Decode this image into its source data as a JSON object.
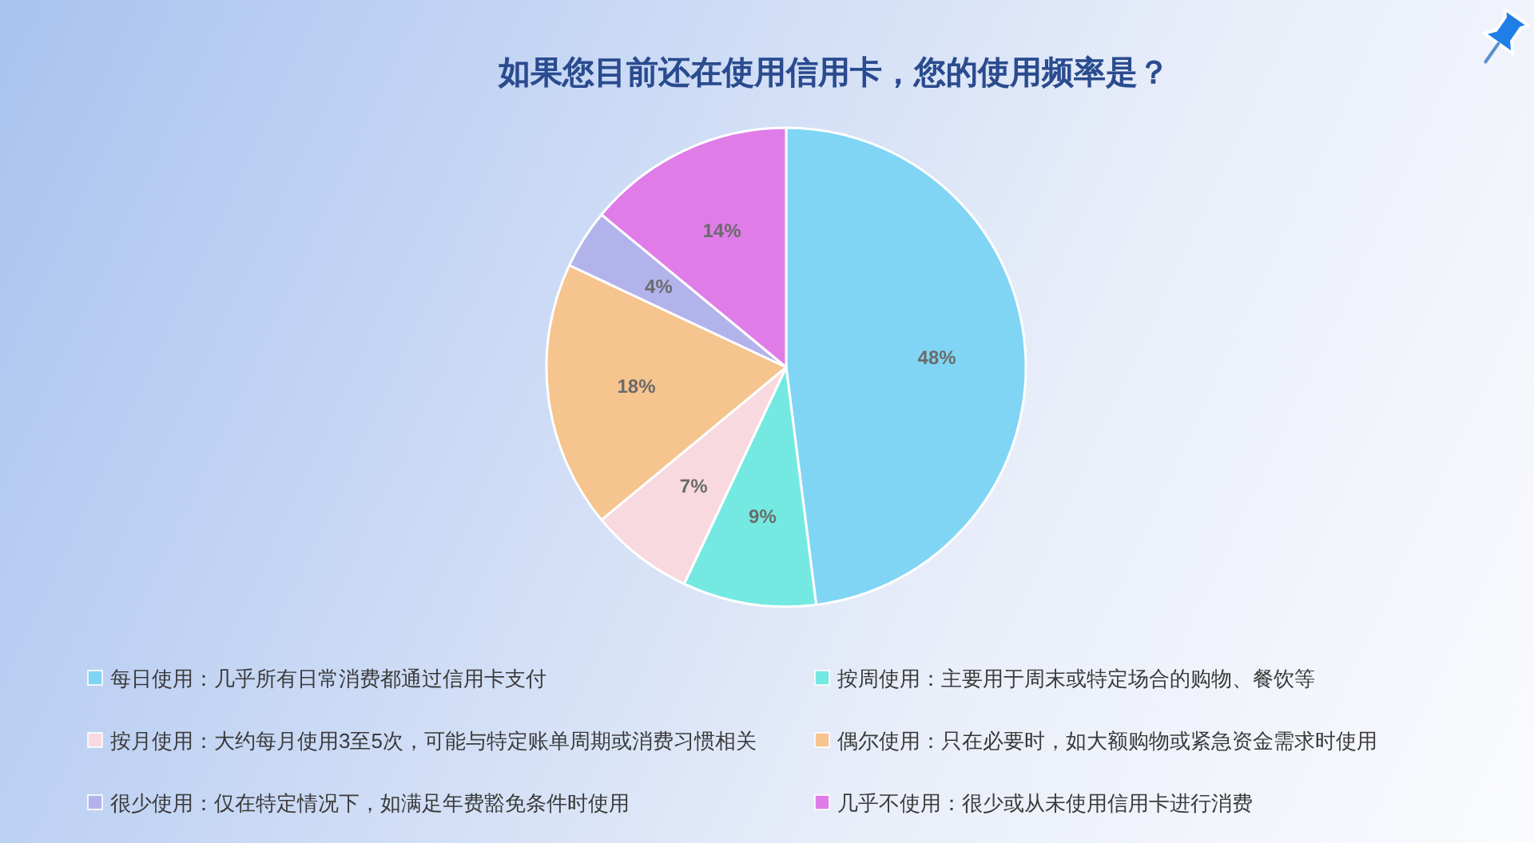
{
  "chart_data": {
    "type": "pie",
    "title": "如果您目前还在使用信用卡，您的使用频率是？",
    "categories": [
      "每日使用：几乎所有日常消费都通过信用卡支付",
      "按周使用：主要用于周末或特定场合的购物、餐饮等",
      "按月使用：大约每月使用3至5次，可能与特定账单周期或消费习惯相关",
      "偶尔使用：只在必要时，如大额购物或紧急资金需求时使用",
      "很少使用：仅在特定情况下，如满足年费豁免条件时使用",
      "几乎不使用：很少或从未使用信用卡进行消费"
    ],
    "values": [
      48,
      9,
      7,
      18,
      4,
      14
    ],
    "colors": [
      "#80d5f4",
      "#74e9e1",
      "#f8d9df",
      "#f6c48e",
      "#b3b3ec",
      "#e07ce8"
    ],
    "value_labels": [
      "48%",
      "9%",
      "7%",
      "18%",
      "4%",
      "14%"
    ],
    "legend": "bottom"
  }
}
